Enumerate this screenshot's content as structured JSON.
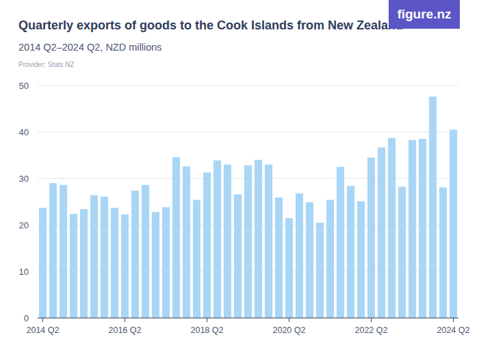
{
  "chart_data": {
    "type": "bar",
    "title": "Quarterly exports of goods to the Cook Islands from New Zealand",
    "subtitle": "2014 Q2–2024 Q2, NZD millions",
    "source": "Provider: Stats NZ",
    "annotations": [
      "figure.nz"
    ],
    "categories": [
      "2014 Q2",
      null,
      null,
      null,
      null,
      null,
      null,
      null,
      "2016 Q2",
      null,
      null,
      null,
      null,
      null,
      null,
      null,
      "2018 Q2",
      null,
      null,
      null,
      null,
      null,
      null,
      null,
      "2020 Q2",
      null,
      null,
      null,
      null,
      null,
      null,
      null,
      "2022 Q2",
      null,
      null,
      null,
      null,
      null,
      null,
      null,
      "2024 Q2"
    ],
    "values": [
      23.7,
      29.0,
      28.6,
      22.4,
      23.4,
      26.4,
      26.1,
      23.7,
      22.3,
      27.4,
      28.6,
      22.8,
      23.8,
      34.6,
      32.6,
      25.4,
      31.3,
      33.9,
      33.0,
      26.6,
      32.8,
      34.0,
      33.0,
      25.9,
      21.5,
      26.8,
      24.9,
      20.5,
      25.4,
      32.5,
      28.4,
      25.1,
      34.5,
      36.7,
      38.7,
      28.2,
      38.3,
      38.5,
      47.6,
      28.1,
      40.5
    ],
    "color": "#a9d6f6",
    "ylim": [
      0,
      50
    ],
    "yticks": [
      0,
      10,
      20,
      30,
      40,
      50
    ],
    "grid": true
  }
}
